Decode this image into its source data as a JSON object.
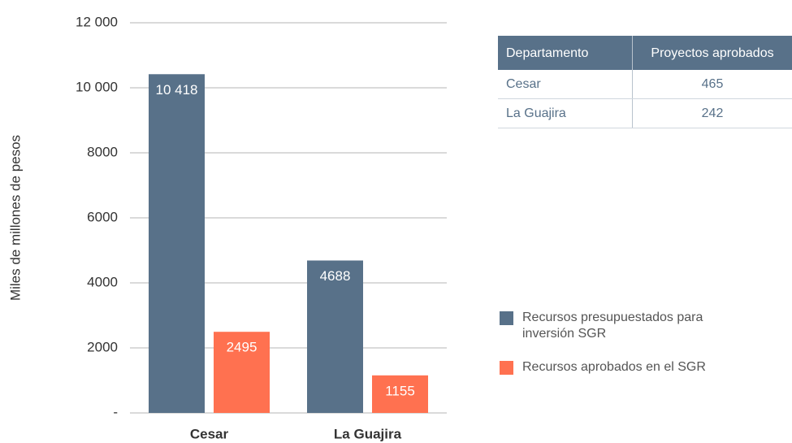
{
  "chart_data": {
    "type": "bar",
    "ylabel": "Miles de millones de pesos",
    "categories": [
      "Cesar",
      "La Guajira"
    ],
    "series": [
      {
        "name": "Recursos presupuestados para inversión SGR",
        "color": "#587189",
        "values": [
          10418,
          4688
        ],
        "value_labels": [
          "10 418",
          "4688"
        ]
      },
      {
        "name": "Recursos aprobados en el SGR",
        "color": "#ff7150",
        "values": [
          2495,
          1155
        ]
      }
    ],
    "ylim": [
      0,
      12000
    ],
    "yticks": [
      {
        "value": 0,
        "label": "-"
      },
      2000,
      4000,
      6000,
      8000,
      {
        "value": 10000,
        "label": "10 000"
      },
      {
        "value": 12000,
        "label": "12 000"
      }
    ],
    "grid": true
  },
  "table": {
    "header": [
      "Departamento",
      "Proyectos aprobados"
    ],
    "rows": [
      [
        "Cesar",
        "465"
      ],
      [
        "La Guajira",
        "242"
      ]
    ]
  }
}
